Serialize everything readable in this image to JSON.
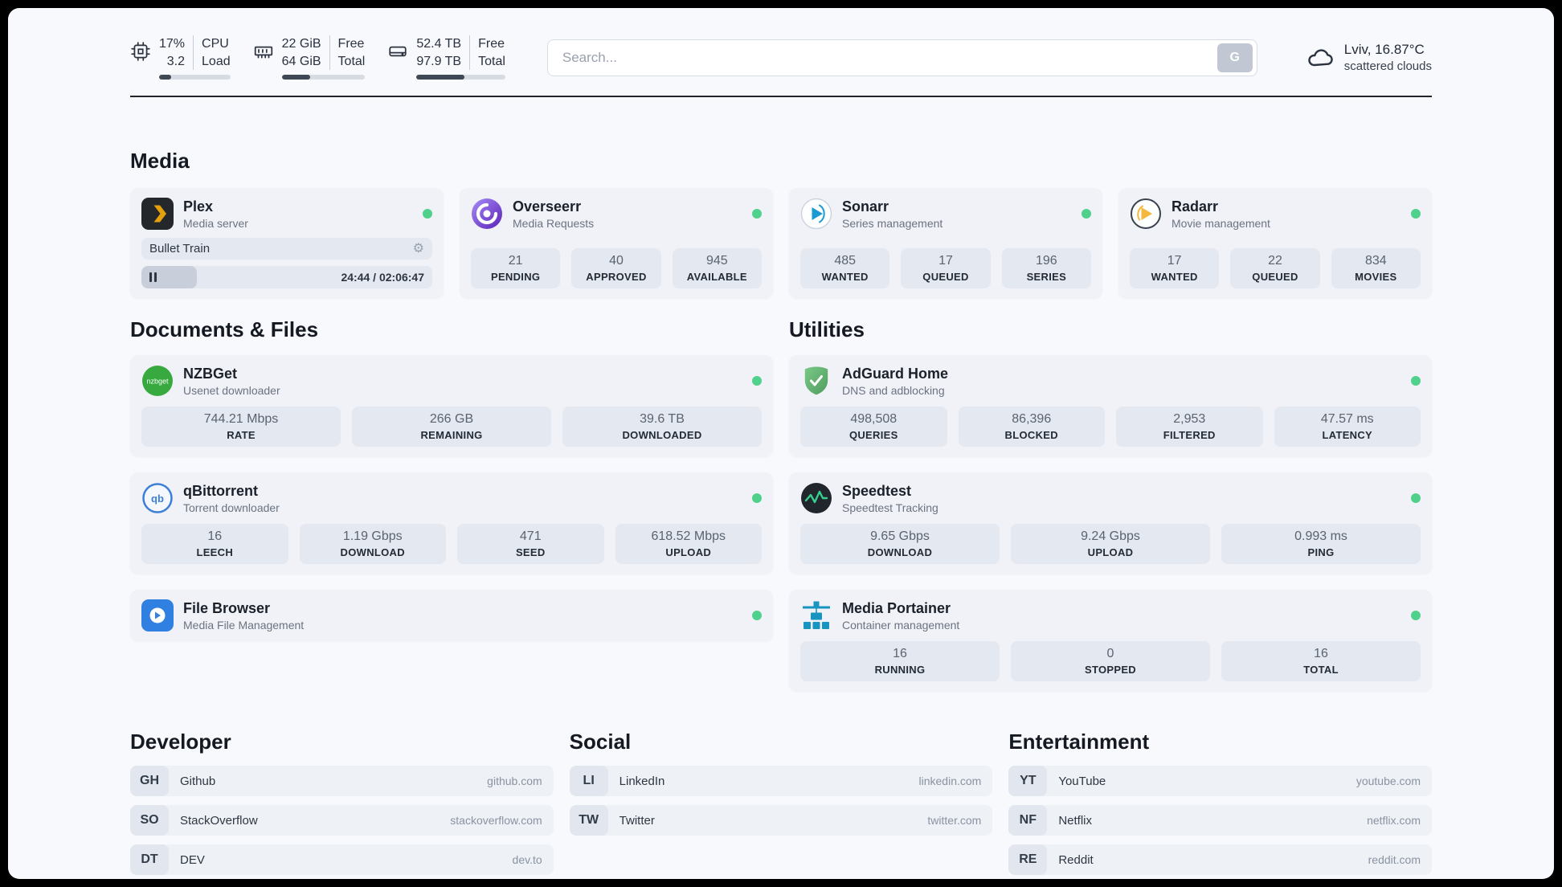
{
  "icons": {
    "gear_glyph": "⚙"
  },
  "colors": {
    "status_online": "#4fd18b",
    "accent_dark": "#20252d",
    "plex_amber": "#e5a00d"
  },
  "topbar": {
    "metrics": [
      {
        "values": [
          "17%",
          "3.2"
        ],
        "labels": [
          "CPU",
          "Load"
        ],
        "progress_pct": 17
      },
      {
        "values": [
          "22 GiB",
          "64 GiB"
        ],
        "labels": [
          "Free",
          "Total"
        ],
        "progress_pct": 34
      },
      {
        "values": [
          "52.4 TB",
          "97.9 TB"
        ],
        "labels": [
          "Free",
          "Total"
        ],
        "progress_pct": 54
      }
    ],
    "search": {
      "placeholder": "Search...",
      "button_label": "G"
    },
    "weather": {
      "location": "Lviv, 16.87°C",
      "condition": "scattered clouds"
    }
  },
  "media": {
    "title": "Media",
    "plex": {
      "name": "Plex",
      "subtitle": "Media server",
      "now_playing": "Bullet Train",
      "time": "24:44 / 02:06:47",
      "progress_pct": 19
    },
    "overseerr": {
      "name": "Overseerr",
      "subtitle": "Media Requests",
      "stats": [
        {
          "value": "21",
          "label": "PENDING"
        },
        {
          "value": "40",
          "label": "APPROVED"
        },
        {
          "value": "945",
          "label": "AVAILABLE"
        }
      ]
    },
    "sonarr": {
      "name": "Sonarr",
      "subtitle": "Series management",
      "stats": [
        {
          "value": "485",
          "label": "WANTED"
        },
        {
          "value": "17",
          "label": "QUEUED"
        },
        {
          "value": "196",
          "label": "SERIES"
        }
      ]
    },
    "radarr": {
      "name": "Radarr",
      "subtitle": "Movie management",
      "stats": [
        {
          "value": "17",
          "label": "WANTED"
        },
        {
          "value": "22",
          "label": "QUEUED"
        },
        {
          "value": "834",
          "label": "MOVIES"
        }
      ]
    }
  },
  "documents": {
    "title": "Documents & Files",
    "nzbget": {
      "name": "NZBGet",
      "subtitle": "Usenet downloader",
      "stats": [
        {
          "value": "744.21 Mbps",
          "label": "RATE"
        },
        {
          "value": "266 GB",
          "label": "REMAINING"
        },
        {
          "value": "39.6 TB",
          "label": "DOWNLOADED"
        }
      ]
    },
    "qbittorrent": {
      "name": "qBittorrent",
      "subtitle": "Torrent downloader",
      "stats": [
        {
          "value": "16",
          "label": "LEECH"
        },
        {
          "value": "1.19 Gbps",
          "label": "DOWNLOAD"
        },
        {
          "value": "471",
          "label": "SEED"
        },
        {
          "value": "618.52 Mbps",
          "label": "UPLOAD"
        }
      ]
    },
    "filebrowser": {
      "name": "File Browser",
      "subtitle": "Media File Management"
    }
  },
  "utilities": {
    "title": "Utilities",
    "adguard": {
      "name": "AdGuard Home",
      "subtitle": "DNS and adblocking",
      "stats": [
        {
          "value": "498,508",
          "label": "QUERIES"
        },
        {
          "value": "86,396",
          "label": "BLOCKED"
        },
        {
          "value": "2,953",
          "label": "FILTERED"
        },
        {
          "value": "47.57 ms",
          "label": "LATENCY"
        }
      ]
    },
    "speedtest": {
      "name": "Speedtest",
      "subtitle": "Speedtest Tracking",
      "stats": [
        {
          "value": "9.65 Gbps",
          "label": "DOWNLOAD"
        },
        {
          "value": "9.24 Gbps",
          "label": "UPLOAD"
        },
        {
          "value": "0.993 ms",
          "label": "PING"
        }
      ]
    },
    "portainer": {
      "name": "Media Portainer",
      "subtitle": "Container management",
      "stats": [
        {
          "value": "16",
          "label": "RUNNING"
        },
        {
          "value": "0",
          "label": "STOPPED"
        },
        {
          "value": "16",
          "label": "TOTAL"
        }
      ]
    }
  },
  "bookmarks": [
    {
      "title": "Developer",
      "items": [
        {
          "abbr": "GH",
          "name": "Github",
          "domain": "github.com"
        },
        {
          "abbr": "SO",
          "name": "StackOverflow",
          "domain": "stackoverflow.com"
        },
        {
          "abbr": "DT",
          "name": "DEV",
          "domain": "dev.to"
        }
      ]
    },
    {
      "title": "Social",
      "items": [
        {
          "abbr": "LI",
          "name": "LinkedIn",
          "domain": "linkedin.com"
        },
        {
          "abbr": "TW",
          "name": "Twitter",
          "domain": "twitter.com"
        }
      ]
    },
    {
      "title": "Entertainment",
      "items": [
        {
          "abbr": "YT",
          "name": "YouTube",
          "domain": "youtube.com"
        },
        {
          "abbr": "NF",
          "name": "Netflix",
          "domain": "netflix.com"
        },
        {
          "abbr": "RE",
          "name": "Reddit",
          "domain": "reddit.com"
        }
      ]
    }
  ]
}
